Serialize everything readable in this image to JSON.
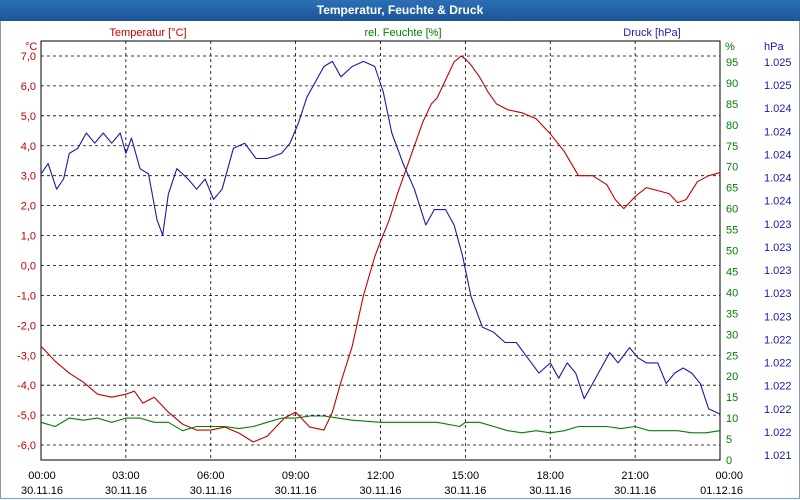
{
  "window": {
    "title": "Temperatur, Feuchte & Druck"
  },
  "colors": {
    "temperature": "#c00000",
    "humidity": "#008000",
    "pressure": "#1a1aa6",
    "grid": "#000000"
  },
  "chart_data": {
    "type": "line",
    "title": "Temperatur, Feuchte & Druck",
    "grid": true,
    "x_ticks": [
      {
        "time": "00:00",
        "date": "30.11.16"
      },
      {
        "time": "03:00",
        "date": "30.11.16"
      },
      {
        "time": "06:00",
        "date": "30.11.16"
      },
      {
        "time": "09:00",
        "date": "30.11.16"
      },
      {
        "time": "12:00",
        "date": "30.11.16"
      },
      {
        "time": "15:00",
        "date": "30.11.16"
      },
      {
        "time": "18:00",
        "date": "30.11.16"
      },
      {
        "time": "21:00",
        "date": "30.11.16"
      },
      {
        "time": "00:00",
        "date": "01.12.16"
      }
    ],
    "x_range_hours": [
      0,
      24
    ],
    "axes": {
      "temperature": {
        "label": "Temperatur [°C]",
        "unit": "°C",
        "range": [
          -6.5,
          7.5
        ],
        "ticks": [
          "7,0",
          "6,0",
          "5,0",
          "4,0",
          "3,0",
          "2,0",
          "1,0",
          "0,0",
          "-1,0",
          "-2,0",
          "-3,0",
          "-4,0",
          "-5,0",
          "-6,0"
        ]
      },
      "humidity": {
        "label": "rel. Feuchte [%]",
        "unit": "%",
        "range": [
          0,
          100
        ],
        "ticks": [
          "95",
          "90",
          "85",
          "80",
          "75",
          "70",
          "65",
          "60",
          "55",
          "50",
          "45",
          "40",
          "35",
          "30",
          "25",
          "20",
          "15",
          "10",
          "5",
          "0"
        ]
      },
      "pressure": {
        "label": "Druck [hPa]",
        "unit": "hPa",
        "range": [
          1021.1,
          1025.2
        ],
        "ticks": [
          "1.025",
          "1.025",
          "1.024",
          "1.024",
          "1.024",
          "1.024",
          "1.024",
          "1.023",
          "1.023",
          "1.023",
          "1.023",
          "1.023",
          "1.022",
          "1.022",
          "1.022",
          "1.022",
          "1.022",
          "1.021"
        ]
      }
    },
    "series": [
      {
        "name": "Temperatur [°C]",
        "axis": "temperature",
        "points": [
          [
            0,
            -2.7
          ],
          [
            0.5,
            -3.2
          ],
          [
            1,
            -3.6
          ],
          [
            1.5,
            -3.9
          ],
          [
            2,
            -4.3
          ],
          [
            2.5,
            -4.4
          ],
          [
            3,
            -4.3
          ],
          [
            3.3,
            -4.2
          ],
          [
            3.6,
            -4.6
          ],
          [
            4,
            -4.4
          ],
          [
            4.5,
            -4.9
          ],
          [
            5,
            -5.3
          ],
          [
            5.5,
            -5.5
          ],
          [
            6,
            -5.5
          ],
          [
            6.5,
            -5.4
          ],
          [
            7,
            -5.6
          ],
          [
            7.5,
            -5.9
          ],
          [
            8,
            -5.7
          ],
          [
            8.3,
            -5.4
          ],
          [
            8.6,
            -5.1
          ],
          [
            9,
            -4.9
          ],
          [
            9.5,
            -5.4
          ],
          [
            10,
            -5.5
          ],
          [
            10.3,
            -4.9
          ],
          [
            10.6,
            -3.9
          ],
          [
            11,
            -2.7
          ],
          [
            11.4,
            -1.0
          ],
          [
            11.8,
            0.3
          ],
          [
            12,
            0.8
          ],
          [
            12.3,
            1.5
          ],
          [
            12.6,
            2.4
          ],
          [
            12.9,
            3.2
          ],
          [
            13.2,
            4.0
          ],
          [
            13.5,
            4.8
          ],
          [
            13.8,
            5.4
          ],
          [
            14,
            5.6
          ],
          [
            14.3,
            6.2
          ],
          [
            14.6,
            6.8
          ],
          [
            14.85,
            7.0
          ],
          [
            15,
            6.9
          ],
          [
            15.2,
            6.7
          ],
          [
            15.5,
            6.3
          ],
          [
            15.8,
            5.8
          ],
          [
            16.1,
            5.4
          ],
          [
            16.5,
            5.2
          ],
          [
            17,
            5.1
          ],
          [
            17.5,
            4.9
          ],
          [
            18,
            4.4
          ],
          [
            18.5,
            3.8
          ],
          [
            19,
            3.0
          ],
          [
            19.5,
            3.0
          ],
          [
            20,
            2.7
          ],
          [
            20.3,
            2.2
          ],
          [
            20.6,
            1.9
          ],
          [
            21,
            2.3
          ],
          [
            21.4,
            2.6
          ],
          [
            21.8,
            2.5
          ],
          [
            22.2,
            2.4
          ],
          [
            22.5,
            2.1
          ],
          [
            22.8,
            2.2
          ],
          [
            23.2,
            2.8
          ],
          [
            23.6,
            3.0
          ],
          [
            24,
            3.1
          ]
        ]
      },
      {
        "name": "rel. Feuchte [%]",
        "axis": "humidity",
        "points": [
          [
            0,
            9
          ],
          [
            0.5,
            8
          ],
          [
            1,
            10
          ],
          [
            1.5,
            9.5
          ],
          [
            2,
            10
          ],
          [
            2.5,
            9
          ],
          [
            3,
            10
          ],
          [
            3.5,
            10
          ],
          [
            4,
            9
          ],
          [
            4.5,
            9
          ],
          [
            5,
            7
          ],
          [
            5.5,
            8
          ],
          [
            6,
            8
          ],
          [
            6.5,
            8
          ],
          [
            7,
            7.5
          ],
          [
            7.5,
            8
          ],
          [
            8,
            9
          ],
          [
            8.5,
            10
          ],
          [
            9,
            10
          ],
          [
            9.5,
            10.5
          ],
          [
            10,
            10.5
          ],
          [
            10.5,
            10
          ],
          [
            11,
            9.5
          ],
          [
            12,
            9
          ],
          [
            13,
            9
          ],
          [
            14,
            9
          ],
          [
            14.8,
            8
          ],
          [
            15,
            9
          ],
          [
            15.5,
            9
          ],
          [
            16,
            8
          ],
          [
            16.5,
            7
          ],
          [
            17,
            6.5
          ],
          [
            17.5,
            7
          ],
          [
            18,
            6.5
          ],
          [
            18.5,
            7
          ],
          [
            19,
            8
          ],
          [
            19.5,
            8
          ],
          [
            20,
            8
          ],
          [
            20.5,
            7.5
          ],
          [
            21,
            8
          ],
          [
            21.5,
            7
          ],
          [
            22,
            7
          ],
          [
            22.5,
            7
          ],
          [
            23,
            6.5
          ],
          [
            23.5,
            6.5
          ],
          [
            24,
            7
          ]
        ]
      },
      {
        "name": "Druck [hPa]",
        "axis": "pressure",
        "points": [
          [
            0,
            1023.9
          ],
          [
            0.25,
            1024.0
          ],
          [
            0.55,
            1023.75
          ],
          [
            0.8,
            1023.85
          ],
          [
            1,
            1024.1
          ],
          [
            1.3,
            1024.15
          ],
          [
            1.6,
            1024.3
          ],
          [
            1.9,
            1024.2
          ],
          [
            2.2,
            1024.3
          ],
          [
            2.5,
            1024.2
          ],
          [
            2.8,
            1024.3
          ],
          [
            3,
            1024.1
          ],
          [
            3.2,
            1024.25
          ],
          [
            3.5,
            1023.95
          ],
          [
            3.8,
            1023.9
          ],
          [
            4.1,
            1023.45
          ],
          [
            4.3,
            1023.3
          ],
          [
            4.5,
            1023.7
          ],
          [
            4.8,
            1023.95
          ],
          [
            5.2,
            1023.85
          ],
          [
            5.5,
            1023.75
          ],
          [
            5.8,
            1023.85
          ],
          [
            6.1,
            1023.65
          ],
          [
            6.4,
            1023.75
          ],
          [
            6.8,
            1024.15
          ],
          [
            7.2,
            1024.2
          ],
          [
            7.6,
            1024.05
          ],
          [
            8,
            1024.05
          ],
          [
            8.5,
            1024.1
          ],
          [
            8.8,
            1024.2
          ],
          [
            9.1,
            1024.4
          ],
          [
            9.4,
            1024.65
          ],
          [
            9.7,
            1024.8
          ],
          [
            10,
            1024.95
          ],
          [
            10.3,
            1025.0
          ],
          [
            10.6,
            1024.85
          ],
          [
            11,
            1024.95
          ],
          [
            11.4,
            1025.0
          ],
          [
            11.8,
            1024.95
          ],
          [
            12.1,
            1024.7
          ],
          [
            12.4,
            1024.3
          ],
          [
            12.8,
            1024.0
          ],
          [
            13.2,
            1023.75
          ],
          [
            13.6,
            1023.4
          ],
          [
            13.9,
            1023.55
          ],
          [
            14.3,
            1023.55
          ],
          [
            14.6,
            1023.4
          ],
          [
            14.9,
            1023.1
          ],
          [
            15.2,
            1022.7
          ],
          [
            15.6,
            1022.4
          ],
          [
            16,
            1022.35
          ],
          [
            16.4,
            1022.25
          ],
          [
            16.8,
            1022.25
          ],
          [
            17.2,
            1022.1
          ],
          [
            17.6,
            1021.95
          ],
          [
            18,
            1022.05
          ],
          [
            18.3,
            1021.9
          ],
          [
            18.6,
            1022.05
          ],
          [
            18.9,
            1021.95
          ],
          [
            19.2,
            1021.7
          ],
          [
            19.5,
            1021.85
          ],
          [
            19.8,
            1022.0
          ],
          [
            20.1,
            1022.15
          ],
          [
            20.4,
            1022.05
          ],
          [
            20.8,
            1022.2
          ],
          [
            21.1,
            1022.1
          ],
          [
            21.4,
            1022.05
          ],
          [
            21.8,
            1022.05
          ],
          [
            22.1,
            1021.85
          ],
          [
            22.4,
            1021.95
          ],
          [
            22.7,
            1022.0
          ],
          [
            23,
            1021.95
          ],
          [
            23.3,
            1021.85
          ],
          [
            23.6,
            1021.6
          ],
          [
            24,
            1021.55
          ]
        ]
      }
    ]
  }
}
